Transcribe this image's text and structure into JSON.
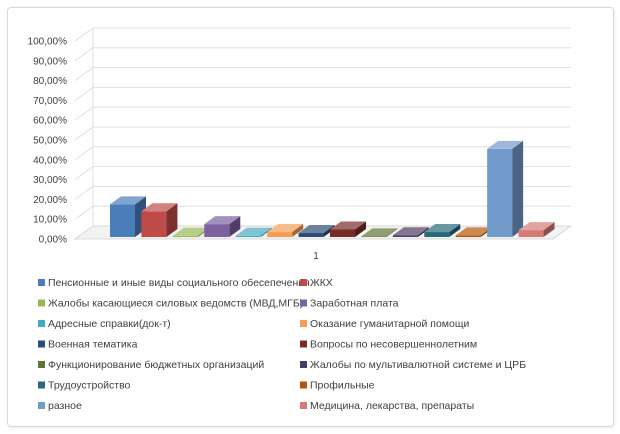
{
  "chart_data": {
    "type": "bar",
    "style": "3d-clustered-column",
    "categories": [
      "1"
    ],
    "ylim": [
      0,
      100
    ],
    "y_ticks": [
      "0,00%",
      "10,00%",
      "20,00%",
      "30,00%",
      "40,00%",
      "50,00%",
      "60,00%",
      "70,00%",
      "80,00%",
      "90,00%",
      "100,00%"
    ],
    "grid": true,
    "legend": "bottom",
    "series": [
      {
        "name": "Пенсионные и иные виды социального обесепечения",
        "values": [
          16.5
        ],
        "color": "#4a7ebb"
      },
      {
        "name": "ЖКХ",
        "values": [
          13.0
        ],
        "color": "#be4b48"
      },
      {
        "name": "Жалобы касающиеся силовых ведомств (МВД,МГБ)",
        "values": [
          0.6
        ],
        "color": "#98b954"
      },
      {
        "name": "Заработная плата",
        "values": [
          6.5
        ],
        "color": "#7d60a0"
      },
      {
        "name": "Адресные справки(док-т)",
        "values": [
          0.6
        ],
        "color": "#46aac5"
      },
      {
        "name": "Оказание гуманитарной помощи",
        "values": [
          2.5
        ],
        "color": "#f59d56"
      },
      {
        "name": "Военная тематика",
        "values": [
          2.0
        ],
        "color": "#2c4d75"
      },
      {
        "name": "Вопросы по несовершеннолетним",
        "values": [
          3.8
        ],
        "color": "#772c2a"
      },
      {
        "name": "Функционирование бюджетных организаций",
        "values": [
          0.3
        ],
        "color": "#5f7530"
      },
      {
        "name": "Жалобы по мультивалютной системе и  ЦРБ",
        "values": [
          0.9
        ],
        "color": "#4d3b62"
      },
      {
        "name": "Трудоустройство",
        "values": [
          2.5
        ],
        "color": "#276a7c"
      },
      {
        "name": "Профильные",
        "values": [
          0.8
        ],
        "color": "#b65708"
      },
      {
        "name": "разное",
        "values": [
          44.5
        ],
        "color": "#729aca"
      },
      {
        "name": "Медицина, лекарства, препараты",
        "values": [
          3.5
        ],
        "color": "#d67a77"
      }
    ]
  }
}
